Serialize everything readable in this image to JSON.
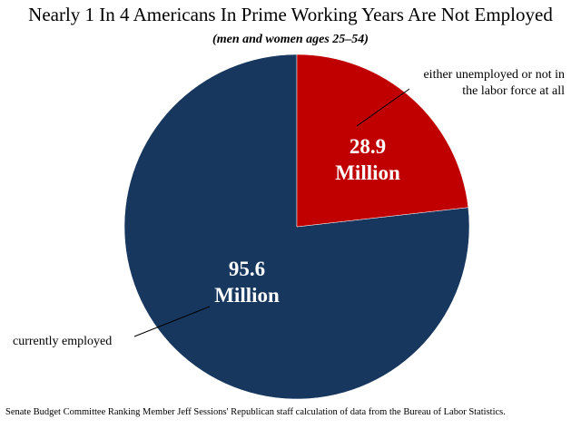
{
  "chart_data": {
    "type": "pie",
    "title": "Nearly 1 In 4 Americans In Prime Working Years Are Not Employed",
    "subtitle": "(men and women ages 25–54)",
    "categories": [
      "either unemployed or not in the labor force at all",
      "currently employed"
    ],
    "values": [
      28.9,
      95.6
    ],
    "value_labels": [
      "28.9 Million",
      "95.6 Million"
    ],
    "colors": [
      "#c00000",
      "#17375e"
    ],
    "note": "Senate Budget Committee Ranking Member Jeff Sessions' Republican staff calculation of data from the Bureau of Labor Statistics."
  }
}
